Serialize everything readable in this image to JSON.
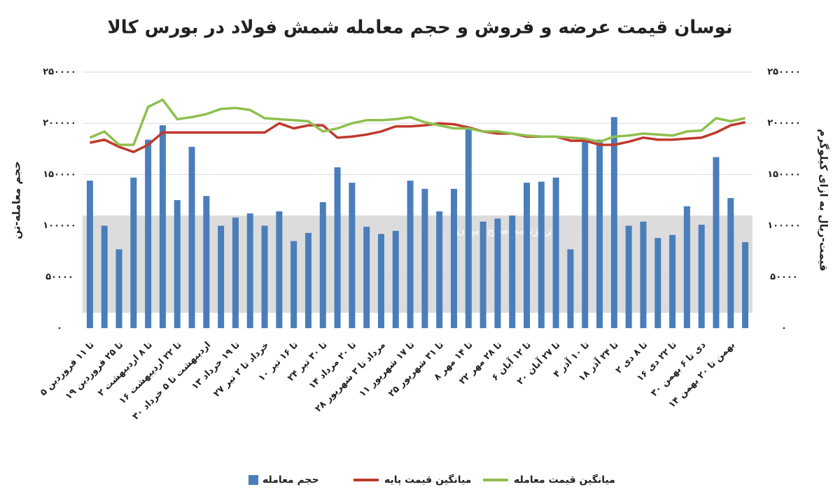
{
  "chart_data": {
    "type": "bar-line",
    "title": "نوسان قیمت عرضه و فروش و حجم معامله شمش فولاد در بورس کالا",
    "watermark": "روزنامه صبح ایران",
    "ylabel": "حجم معامله-تن",
    "y2label": "قیمت-ریال به ازای کیلوگرم",
    "categories": [
      "۵ تا ۱۱ فروردین",
      null,
      "۱۹ تا ۲۵ فروردین",
      null,
      "۲ تا ۸ اردیبهشت",
      null,
      "۱۶ تا ۲۲ اردیبهشت",
      null,
      "۳۰ اردیبهشت تا ۵ خرداد",
      null,
      "۱۳ تا ۱۹ خرداد",
      null,
      "۲۷ خرداد تا ۲ تیر",
      null,
      "۱۰ تا ۱۶ تیر",
      null,
      "۲۴ تا ۳۰ تیر",
      null,
      "۱۴ تا ۲۰ مرداد",
      null,
      "۲۸ مرداد تا ۳ شهریور",
      null,
      "۱۱ تا ۱۷ شهریور",
      null,
      "۲۵ تا ۳۱ شهریور",
      null,
      "۸ تا ۱۴ مهر",
      null,
      "۲۲ تا ۲۸ مهر",
      null,
      "۶ تا ۱۲ آبان",
      null,
      "۲۰ تا ۲۷ آبان",
      null,
      "۴ تا ۱۰ آذر",
      null,
      "۱۸ تا ۲۴ آذر",
      null,
      "۲ تا ۸ دی",
      null,
      "۱۶ تا ۲۲ دی",
      null,
      "۳۰ دی تا ۶ بهمن",
      null,
      "۱۴ بهمن تا ۲۰ بهمن",
      null
    ],
    "series": [
      {
        "name": "حجم معامله",
        "type": "bar",
        "color": "#4a7ebb",
        "axis": "y",
        "values": [
          144000,
          100000,
          77000,
          147000,
          184000,
          198000,
          125000,
          177000,
          129000,
          100000,
          108000,
          112000,
          100000,
          114000,
          85000,
          93000,
          123000,
          157000,
          142000,
          99000,
          92000,
          95000,
          144000,
          136000,
          114000,
          136000,
          194000,
          104000,
          107000,
          110000,
          142000,
          143000,
          147000,
          77000,
          182000,
          184000,
          206000,
          100000,
          104000,
          88000,
          91000,
          119000,
          101000,
          167000,
          127000,
          84000
        ]
      },
      {
        "name": "میانگین قیمت پایه",
        "type": "line",
        "color": "#c0392b",
        "axis": "y2",
        "values": [
          181000,
          184000,
          177000,
          172000,
          179000,
          191000,
          191000,
          191000,
          191000,
          191000,
          191000,
          191000,
          191000,
          200000,
          195000,
          198000,
          198000,
          186000,
          187000,
          189000,
          192000,
          197000,
          197000,
          198000,
          200000,
          199000,
          196000,
          192000,
          190000,
          190000,
          187000,
          187000,
          187000,
          183000,
          183000,
          179000,
          179000,
          182000,
          186000,
          184000,
          184000,
          185000,
          186000,
          191000,
          198000,
          201000
        ]
      },
      {
        "name": "میانگین قیمت معامله",
        "type": "line",
        "color": "#8dc04e",
        "axis": "y2",
        "values": [
          186000,
          192000,
          179000,
          179000,
          216000,
          223000,
          204000,
          206000,
          209000,
          214000,
          215000,
          213000,
          205000,
          204000,
          203000,
          202000,
          192000,
          195000,
          200000,
          203000,
          203000,
          204000,
          206000,
          201000,
          198000,
          195000,
          195000,
          192000,
          192000,
          190000,
          188000,
          187000,
          187000,
          186000,
          185000,
          182000,
          187000,
          188000,
          190000,
          189000,
          188000,
          192000,
          193000,
          205000,
          202000,
          205000
        ]
      }
    ],
    "ylim": [
      0,
      250000
    ],
    "yticks": [
      {
        "value": 0,
        "label": "۰"
      },
      {
        "value": 50000,
        "label": "۵۰۰۰۰"
      },
      {
        "value": 100000,
        "label": "۱۰۰۰۰۰"
      },
      {
        "value": 150000,
        "label": "۱۵۰۰۰۰"
      },
      {
        "value": 200000,
        "label": "۲۰۰۰۰۰"
      },
      {
        "value": 250000,
        "label": "۲۵۰۰۰۰"
      }
    ],
    "y2lim": [
      0,
      250000
    ],
    "y2ticks": [
      {
        "value": 0,
        "label": "۰"
      },
      {
        "value": 50000,
        "label": "۵۰۰۰۰"
      },
      {
        "value": 100000,
        "label": "۱۰۰۰۰۰"
      },
      {
        "value": 150000,
        "label": "۱۵۰۰۰۰"
      },
      {
        "value": 200000,
        "label": "۲۰۰۰۰۰"
      },
      {
        "value": 250000,
        "label": "۲۵۰۰۰۰"
      }
    ],
    "grid": true,
    "legend": "bottom"
  }
}
